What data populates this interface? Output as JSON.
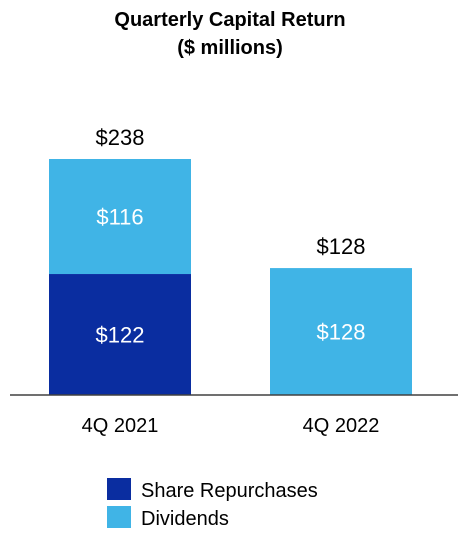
{
  "chart_data": {
    "type": "bar",
    "stacked": true,
    "title": "Quarterly Capital Return",
    "subtitle": "($ millions)",
    "categories": [
      "4Q 2021",
      "4Q 2022"
    ],
    "series": [
      {
        "name": "Share Repurchases",
        "values": [
          122,
          0
        ],
        "labels": [
          "$122",
          ""
        ],
        "color": "#0A2DA0"
      },
      {
        "name": "Dividends",
        "values": [
          116,
          128
        ],
        "labels": [
          "$116",
          "$128"
        ],
        "color": "#40B4E6"
      }
    ],
    "totals": [
      238,
      128
    ],
    "total_labels": [
      "$238",
      "$128"
    ],
    "xlabel": "",
    "ylabel": "",
    "ylim": [
      0,
      238
    ],
    "grid": false,
    "legend": "bottom"
  }
}
